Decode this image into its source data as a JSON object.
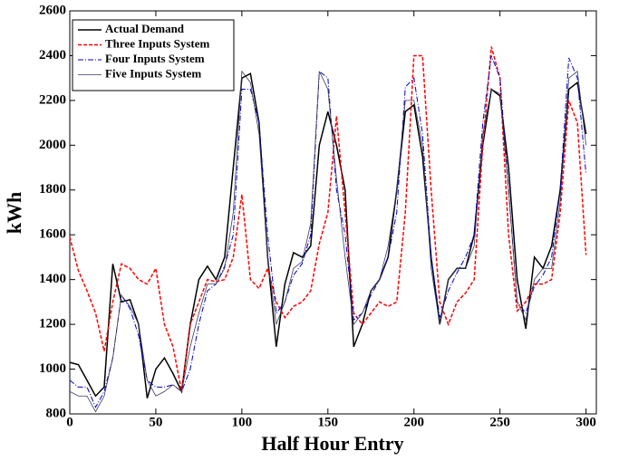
{
  "chart_data": {
    "type": "line",
    "x_label": "Half Hour Entry",
    "y_label": "kWh",
    "x": [
      0,
      5,
      10,
      15,
      20,
      25,
      30,
      35,
      40,
      45,
      50,
      55,
      60,
      65,
      70,
      75,
      80,
      85,
      90,
      95,
      100,
      105,
      110,
      115,
      120,
      125,
      130,
      135,
      140,
      145,
      150,
      155,
      160,
      165,
      170,
      175,
      180,
      185,
      190,
      195,
      200,
      205,
      210,
      215,
      220,
      225,
      230,
      235,
      240,
      245,
      250,
      255,
      260,
      265,
      270,
      275,
      280,
      285,
      290,
      295,
      300
    ],
    "series": [
      {
        "name": "Actual Demand",
        "color": "#000000",
        "style": "solid",
        "values": [
          1030,
          1020,
          950,
          880,
          920,
          1470,
          1300,
          1310,
          1200,
          870,
          1000,
          1050,
          980,
          900,
          1200,
          1400,
          1460,
          1400,
          1500,
          1900,
          2300,
          2320,
          2100,
          1500,
          1100,
          1380,
          1520,
          1500,
          1550,
          2000,
          2150,
          2000,
          1800,
          1100,
          1200,
          1350,
          1400,
          1500,
          1800,
          2150,
          2180,
          1950,
          1500,
          1200,
          1400,
          1450,
          1450,
          1600,
          2000,
          2250,
          2220,
          1900,
          1400,
          1180,
          1500,
          1450,
          1550,
          1800,
          2250,
          2280,
          2050
        ]
      },
      {
        "name": "Three Inputs System",
        "color": "#ff0000",
        "style": "dashed",
        "values": [
          1590,
          1440,
          1350,
          1250,
          1080,
          1300,
          1470,
          1450,
          1400,
          1380,
          1450,
          1200,
          1100,
          900,
          1200,
          1300,
          1400,
          1390,
          1400,
          1500,
          1780,
          1400,
          1360,
          1450,
          1300,
          1230,
          1280,
          1300,
          1350,
          1560,
          1700,
          2130,
          1700,
          1250,
          1200,
          1250,
          1300,
          1280,
          1300,
          1700,
          2400,
          2400,
          1800,
          1300,
          1200,
          1300,
          1340,
          1400,
          2000,
          2440,
          2300,
          1600,
          1260,
          1300,
          1380,
          1380,
          1400,
          1700,
          2200,
          2100,
          1510
        ]
      },
      {
        "name": "Four Inputs System",
        "color": "#0000cc",
        "style": "dashdot",
        "values": [
          950,
          920,
          920,
          830,
          900,
          1050,
          1330,
          1270,
          1150,
          950,
          920,
          920,
          930,
          900,
          1000,
          1200,
          1350,
          1380,
          1460,
          1600,
          2250,
          2250,
          2100,
          1600,
          1250,
          1300,
          1420,
          1470,
          1600,
          2330,
          2300,
          1800,
          1600,
          1220,
          1250,
          1330,
          1400,
          1500,
          1700,
          2260,
          2300,
          2050,
          1500,
          1230,
          1350,
          1430,
          1500,
          1600,
          2100,
          2400,
          2300,
          1800,
          1300,
          1250,
          1370,
          1420,
          1500,
          1800,
          2390,
          2300,
          1870
        ]
      },
      {
        "name": "Five Inputs System",
        "color": "#3a3a5a",
        "style": "thin",
        "values": [
          900,
          880,
          880,
          810,
          880,
          1050,
          1330,
          1280,
          1200,
          950,
          880,
          900,
          930,
          900,
          1100,
          1250,
          1380,
          1380,
          1450,
          1700,
          2330,
          2280,
          2050,
          1500,
          1200,
          1300,
          1450,
          1480,
          1650,
          2330,
          2250,
          1850,
          1500,
          1200,
          1250,
          1350,
          1400,
          1550,
          1800,
          2200,
          2200,
          2000,
          1450,
          1200,
          1400,
          1450,
          1450,
          1550,
          2050,
          2250,
          2230,
          1800,
          1300,
          1220,
          1400,
          1450,
          1450,
          1750,
          2300,
          2330,
          2000
        ]
      }
    ],
    "xlim": [
      0,
      306
    ],
    "ylim": [
      800,
      2600
    ],
    "xticks": [
      0,
      50,
      100,
      150,
      200,
      250,
      300
    ],
    "yticks": [
      800,
      1000,
      1200,
      1400,
      1600,
      1800,
      2000,
      2200,
      2400,
      2600
    ],
    "grid": false,
    "legend": "upper left"
  }
}
